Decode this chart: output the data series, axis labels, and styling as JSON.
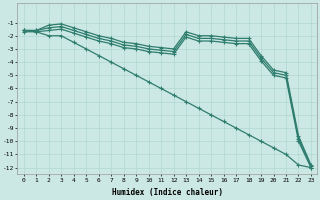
{
  "xlabel": "Humidex (Indice chaleur)",
  "bg_color": "#cce8e4",
  "grid_color": "#b0d8d0",
  "line_color": "#2e7d6e",
  "xlim": [
    -0.5,
    23.5
  ],
  "ylim": [
    -12.5,
    0.5
  ],
  "xtick_labels": [
    "0",
    "1",
    "2",
    "3",
    "4",
    "5",
    "6",
    "7",
    "8",
    "9",
    "10",
    "11",
    "12",
    "13",
    "14",
    "15",
    "16",
    "17",
    "18",
    "19",
    "20",
    "21",
    "22",
    "23"
  ],
  "ytick_labels": [
    "-1",
    "-2",
    "-3",
    "-4",
    "-5",
    "-6",
    "-7",
    "-8",
    "-9",
    "-10",
    "-11",
    "-12"
  ],
  "ytick_vals": [
    -1,
    -2,
    -3,
    -4,
    -5,
    -6,
    -7,
    -8,
    -9,
    -10,
    -11,
    -12
  ],
  "marker": "+",
  "markersize": 3.5,
  "linewidth": 0.9,
  "series_A": [
    -1.6,
    -1.6,
    -1.2,
    -1.1,
    -1.4,
    -1.7,
    -2.0,
    -2.2,
    -2.5,
    -2.6,
    -2.8,
    -2.9,
    -3.0,
    -1.7,
    -2.0,
    -2.0,
    -2.1,
    -2.2,
    -2.2,
    -3.5,
    -4.6,
    -4.8,
    -9.6,
    -11.8
  ],
  "series_B": [
    -1.6,
    -1.6,
    -1.4,
    -1.3,
    -1.6,
    -1.9,
    -2.2,
    -2.4,
    -2.7,
    -2.8,
    -3.0,
    -3.1,
    -3.2,
    -1.9,
    -2.2,
    -2.2,
    -2.3,
    -2.4,
    -2.4,
    -3.7,
    -4.8,
    -5.0,
    -9.8,
    -11.9
  ],
  "series_C": [
    -1.7,
    -1.7,
    -1.6,
    -1.5,
    -1.8,
    -2.1,
    -2.4,
    -2.6,
    -2.9,
    -3.0,
    -3.2,
    -3.3,
    -3.4,
    -2.1,
    -2.4,
    -2.4,
    -2.5,
    -2.6,
    -2.6,
    -3.9,
    -5.0,
    -5.2,
    -10.0,
    -12.0
  ],
  "series_D": [
    -1.6,
    -1.7,
    -2.0,
    -2.0,
    -2.5,
    -3.0,
    -3.5,
    -4.0,
    -4.5,
    -5.0,
    -5.5,
    -6.0,
    -6.5,
    -7.0,
    -7.5,
    -8.0,
    -8.5,
    -9.0,
    -9.5,
    -10.0,
    -10.5,
    -11.0,
    -11.8,
    -12.0
  ]
}
